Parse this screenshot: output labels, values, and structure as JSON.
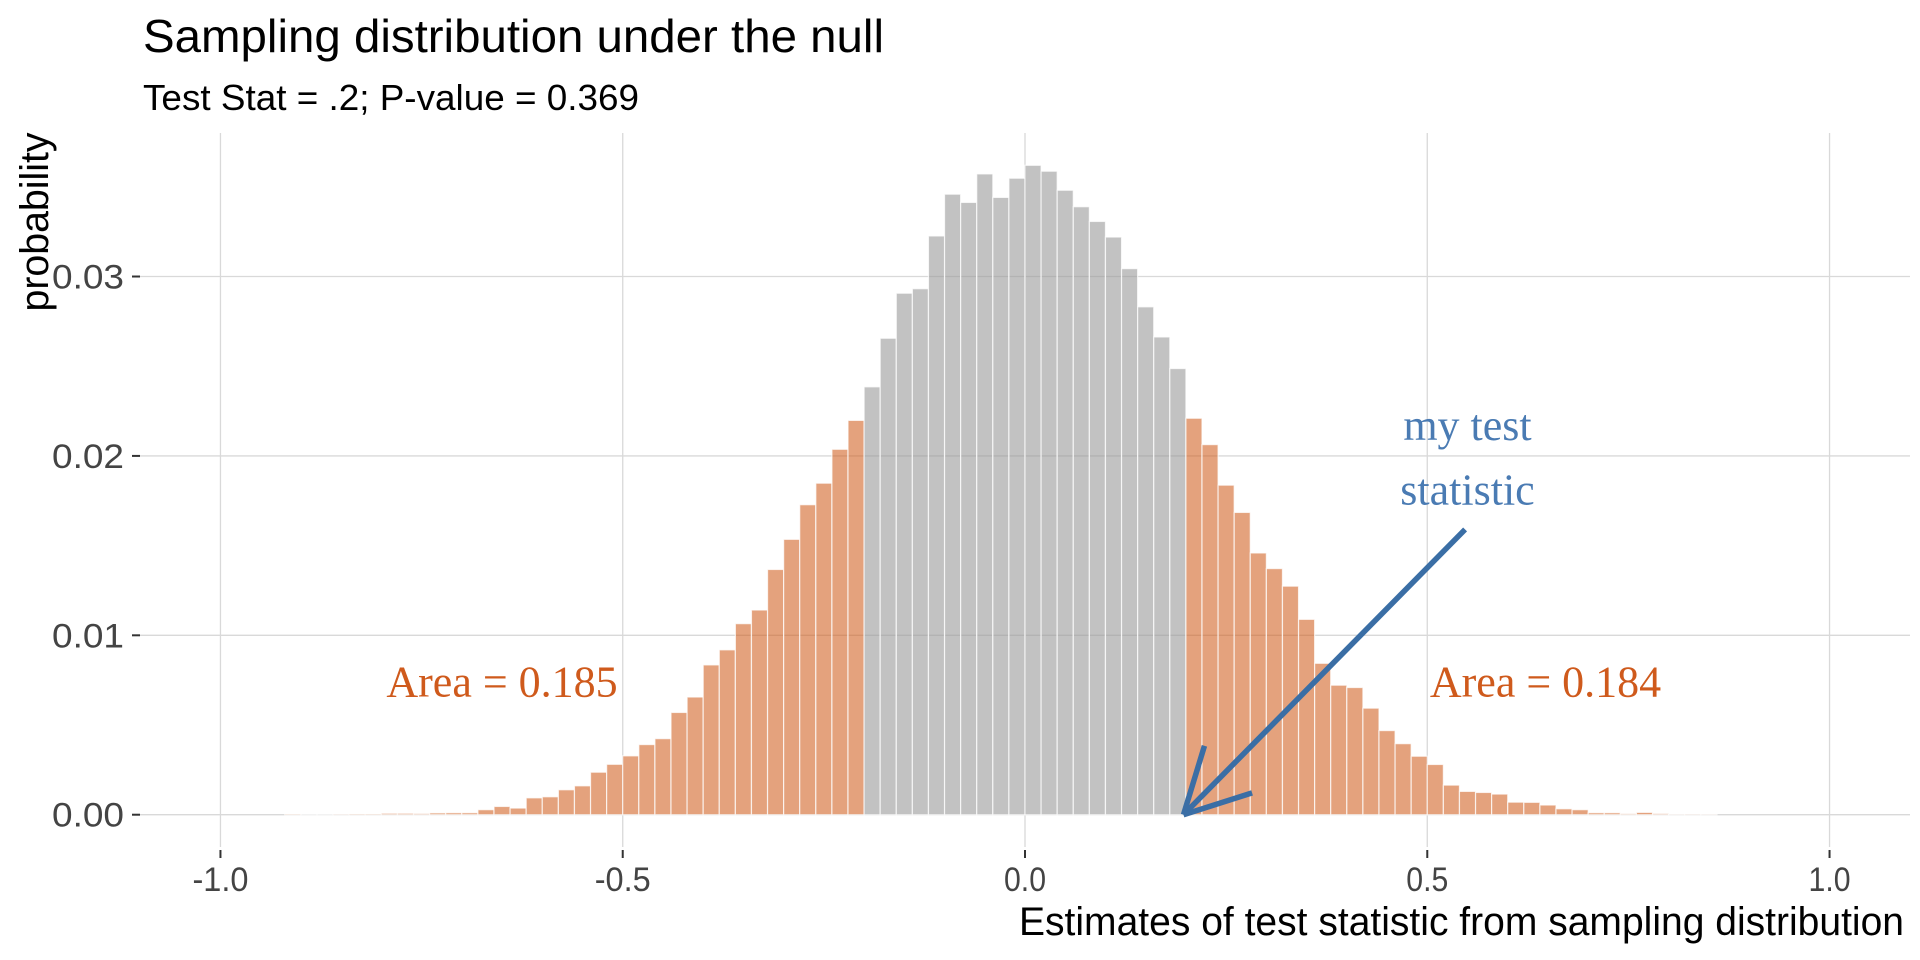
{
  "chart_data": {
    "type": "bar",
    "title": "Sampling distribution under the null",
    "subtitle": "Test Stat = .2; P-value = 0.369",
    "xlabel": "Estimates of test statistic from sampling distribution",
    "ylabel": "probability",
    "xlim": [
      -1.1,
      1.1
    ],
    "ylim": [
      -0.0018,
      0.038
    ],
    "x_ticks": [
      -1.0,
      -0.5,
      0.0,
      0.5,
      1.0
    ],
    "x_tick_labels": [
      "-1.0",
      "-0.5",
      "0.0",
      "0.5",
      "1.0"
    ],
    "y_ticks": [
      0.0,
      0.01,
      0.02,
      0.03
    ],
    "y_tick_labels": [
      "0.00",
      "0.01",
      "0.02",
      "0.03"
    ],
    "grid": true,
    "bin_width": 0.02,
    "tail_threshold": 0.2,
    "colors": {
      "center": "#9a9a9a",
      "tail": "#cf5c1a",
      "tail_text": "#cf5a1c",
      "arrow": "#3a6ea5",
      "arrow_text": "#4a7bb3",
      "grid": "#d9d9d9"
    },
    "bins": [
      {
        "x": -0.92,
        "y": 3e-05
      },
      {
        "x": -0.9,
        "y": 0.0
      },
      {
        "x": -0.88,
        "y": 0.0
      },
      {
        "x": -0.86,
        "y": 2e-05
      },
      {
        "x": -0.84,
        "y": 4e-05
      },
      {
        "x": -0.82,
        "y": 4e-05
      },
      {
        "x": -0.8,
        "y": 8e-05
      },
      {
        "x": -0.78,
        "y": 8e-05
      },
      {
        "x": -0.76,
        "y": 7e-05
      },
      {
        "x": -0.74,
        "y": 0.0001
      },
      {
        "x": -0.72,
        "y": 0.00011
      },
      {
        "x": -0.7,
        "y": 0.00011
      },
      {
        "x": -0.68,
        "y": 0.00028
      },
      {
        "x": -0.66,
        "y": 0.00046
      },
      {
        "x": -0.64,
        "y": 0.00037
      },
      {
        "x": -0.62,
        "y": 0.00094
      },
      {
        "x": -0.6,
        "y": 0.001
      },
      {
        "x": -0.58,
        "y": 0.00139
      },
      {
        "x": -0.56,
        "y": 0.00161
      },
      {
        "x": -0.54,
        "y": 0.00237
      },
      {
        "x": -0.52,
        "y": 0.00281
      },
      {
        "x": -0.5,
        "y": 0.00328
      },
      {
        "x": -0.48,
        "y": 0.00391
      },
      {
        "x": -0.46,
        "y": 0.00424
      },
      {
        "x": -0.44,
        "y": 0.0057
      },
      {
        "x": -0.42,
        "y": 0.00656
      },
      {
        "x": -0.4,
        "y": 0.00835
      },
      {
        "x": -0.38,
        "y": 0.00919
      },
      {
        "x": -0.36,
        "y": 0.01065
      },
      {
        "x": -0.34,
        "y": 0.01141
      },
      {
        "x": -0.32,
        "y": 0.01367
      },
      {
        "x": -0.3,
        "y": 0.01535
      },
      {
        "x": -0.28,
        "y": 0.01728
      },
      {
        "x": -0.26,
        "y": 0.01848
      },
      {
        "x": -0.24,
        "y": 0.02037
      },
      {
        "x": -0.22,
        "y": 0.02198
      },
      {
        "x": -0.2,
        "y": 0.02385
      },
      {
        "x": -0.18,
        "y": 0.02656
      },
      {
        "x": -0.16,
        "y": 0.02907
      },
      {
        "x": -0.14,
        "y": 0.02932
      },
      {
        "x": -0.12,
        "y": 0.03226
      },
      {
        "x": -0.1,
        "y": 0.03459
      },
      {
        "x": -0.08,
        "y": 0.03413
      },
      {
        "x": -0.06,
        "y": 0.03572
      },
      {
        "x": -0.04,
        "y": 0.03441
      },
      {
        "x": -0.02,
        "y": 0.03548
      },
      {
        "x": 0.0,
        "y": 0.0362
      },
      {
        "x": 0.02,
        "y": 0.03587
      },
      {
        "x": 0.04,
        "y": 0.03481
      },
      {
        "x": 0.06,
        "y": 0.03389
      },
      {
        "x": 0.08,
        "y": 0.03307
      },
      {
        "x": 0.1,
        "y": 0.0322
      },
      {
        "x": 0.12,
        "y": 0.03044
      },
      {
        "x": 0.14,
        "y": 0.02831
      },
      {
        "x": 0.16,
        "y": 0.02663
      },
      {
        "x": 0.18,
        "y": 0.02487
      },
      {
        "x": 0.2,
        "y": 0.0221
      },
      {
        "x": 0.22,
        "y": 0.02063
      },
      {
        "x": 0.24,
        "y": 0.01837
      },
      {
        "x": 0.26,
        "y": 0.01685
      },
      {
        "x": 0.28,
        "y": 0.01459
      },
      {
        "x": 0.3,
        "y": 0.01372
      },
      {
        "x": 0.32,
        "y": 0.01274
      },
      {
        "x": 0.34,
        "y": 0.01089
      },
      {
        "x": 0.36,
        "y": 0.00844
      },
      {
        "x": 0.38,
        "y": 0.00722
      },
      {
        "x": 0.4,
        "y": 0.00709
      },
      {
        "x": 0.42,
        "y": 0.00594
      },
      {
        "x": 0.44,
        "y": 0.00469
      },
      {
        "x": 0.46,
        "y": 0.00396
      },
      {
        "x": 0.48,
        "y": 0.00326
      },
      {
        "x": 0.5,
        "y": 0.0028
      },
      {
        "x": 0.52,
        "y": 0.00165
      },
      {
        "x": 0.54,
        "y": 0.0013
      },
      {
        "x": 0.56,
        "y": 0.00124
      },
      {
        "x": 0.58,
        "y": 0.00115
      },
      {
        "x": 0.6,
        "y": 0.0007
      },
      {
        "x": 0.62,
        "y": 0.00069
      },
      {
        "x": 0.64,
        "y": 0.00054
      },
      {
        "x": 0.66,
        "y": 0.00033
      },
      {
        "x": 0.68,
        "y": 0.00028
      },
      {
        "x": 0.7,
        "y": 0.00011
      },
      {
        "x": 0.72,
        "y": 0.00011
      },
      {
        "x": 0.74,
        "y": 6e-05
      },
      {
        "x": 0.76,
        "y": 0.00013
      },
      {
        "x": 0.78,
        "y": 7e-05
      },
      {
        "x": 0.8,
        "y": 1e-05
      },
      {
        "x": 0.82,
        "y": 2e-05
      },
      {
        "x": 0.84,
        "y": 1e-05
      }
    ],
    "annotations": {
      "left_area": {
        "text": "Area = 0.185",
        "x": -0.65,
        "y": 0.0066
      },
      "right_area": {
        "text": "Area = 0.184",
        "x": 0.647,
        "y": 0.0066
      },
      "test_stat_label": {
        "lines": [
          "my test",
          "statistic"
        ],
        "x": 0.55,
        "y": [
          0.0209,
          0.0173
        ]
      },
      "arrow": {
        "from": [
          0.547,
          0.0159
        ],
        "to": [
          0.197,
          0.0
        ]
      }
    }
  }
}
